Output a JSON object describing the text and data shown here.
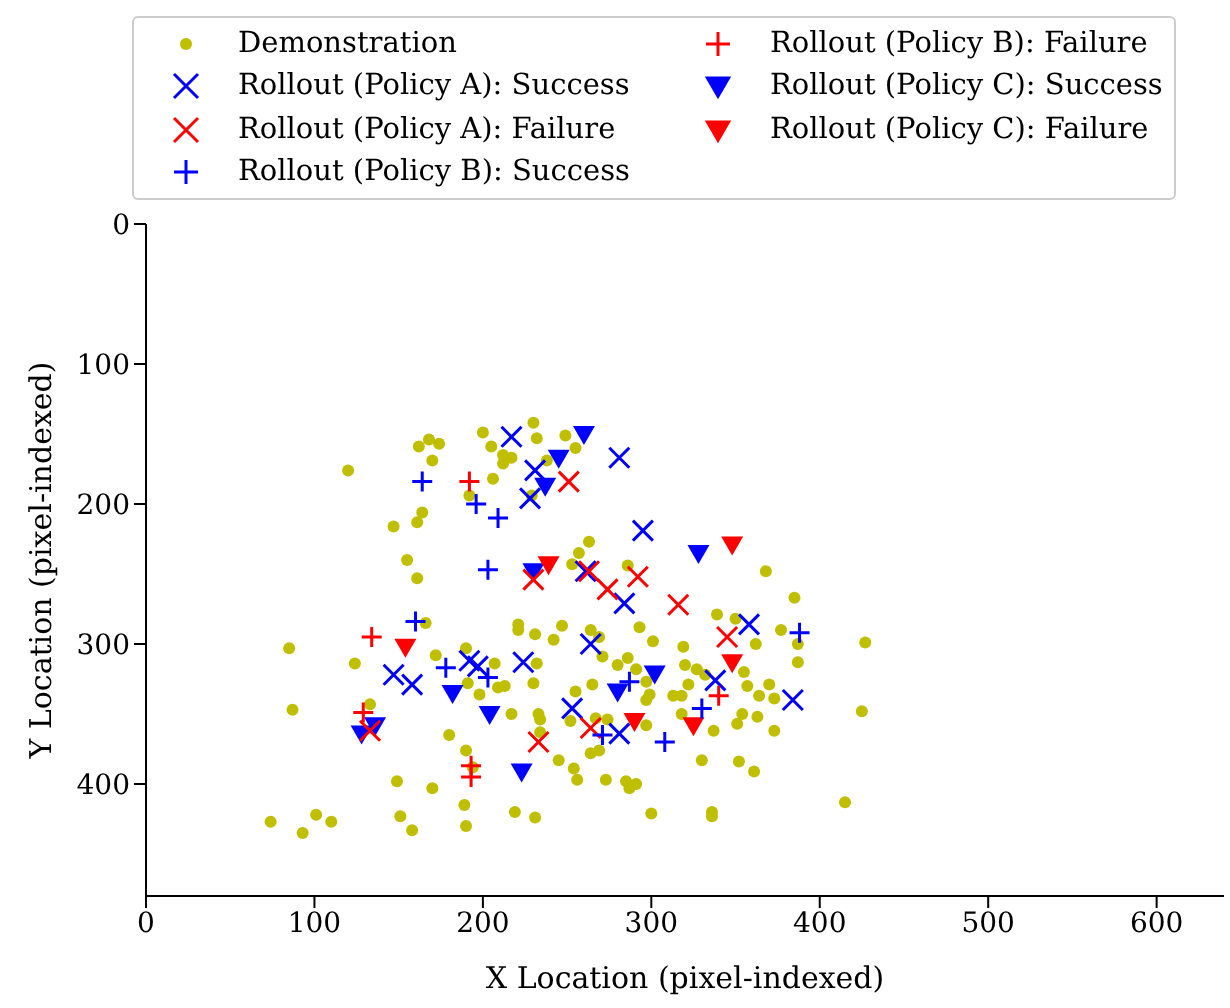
{
  "chart_data": {
    "type": "scatter",
    "xlabel": "X Location (pixel-indexed)",
    "ylabel": "Y Location (pixel-indexed)",
    "xlim": [
      0,
      640
    ],
    "xticks": [
      0,
      100,
      200,
      300,
      400,
      500,
      600
    ],
    "ylim": [
      480,
      0
    ],
    "yticks": [
      0,
      100,
      200,
      300,
      400
    ],
    "grid": false,
    "legend": "top",
    "series": [
      {
        "name": "Demonstration",
        "color": "#bfbf00",
        "marker": "circle",
        "x": [
          120,
          162,
          168,
          174,
          170,
          200,
          205,
          212,
          217,
          212,
          230,
          232,
          206,
          192,
          229,
          164,
          161,
          147,
          155,
          161,
          249,
          255,
          238,
          263,
          257,
          253,
          286,
          368,
          166,
          85,
          124,
          172,
          190,
          191,
          207,
          221,
          221,
          231,
          232,
          230,
          209,
          213,
          198,
          217,
          233,
          234,
          133,
          87,
          180,
          190,
          194,
          149,
          170,
          189,
          190,
          151,
          158,
          219,
          231,
          74,
          93,
          101,
          110,
          385,
          427,
          387,
          387,
          377,
          362,
          339,
          350,
          247,
          242,
          264,
          269,
          293,
          301,
          319,
          271,
          286,
          280,
          291,
          320,
          327,
          265,
          255,
          297,
          299,
          297,
          313,
          318,
          322,
          332,
          355,
          357,
          370,
          364,
          373,
          354,
          363,
          351,
          373,
          425,
          234,
          252,
          267,
          274,
          297,
          318,
          337,
          245,
          264,
          269,
          254,
          256,
          273,
          285,
          291,
          287,
          330,
          352,
          361,
          300,
          336,
          336,
          415
        ],
        "values": [
          176,
          159,
          154,
          157,
          169,
          149,
          159,
          165,
          167,
          171,
          142,
          153,
          182,
          194,
          194,
          206,
          213,
          216,
          240,
          253,
          151,
          160,
          169,
          227,
          235,
          243,
          244,
          248,
          285,
          303,
          314,
          308,
          303,
          328,
          314,
          286,
          290,
          293,
          314,
          328,
          331,
          330,
          336,
          350,
          350,
          354,
          343,
          347,
          365,
          376,
          388,
          398,
          403,
          415,
          430,
          423,
          433,
          420,
          424,
          427,
          435,
          422,
          427,
          267,
          299,
          300,
          313,
          290,
          300,
          279,
          282,
          287,
          297,
          290,
          295,
          288,
          298,
          302,
          309,
          310,
          315,
          318,
          315,
          318,
          329,
          334,
          327,
          336,
          340,
          337,
          337,
          329,
          322,
          320,
          330,
          329,
          337,
          339,
          350,
          352,
          357,
          362,
          348,
          363,
          355,
          353,
          354,
          358,
          350,
          362,
          383,
          378,
          376,
          389,
          397,
          397,
          398,
          400,
          403,
          383,
          384,
          391,
          421,
          420,
          423,
          413
        ]
      },
      {
        "name": "Rollout (Policy A): Success",
        "color": "#0000ff",
        "marker": "cross",
        "x": [
          217,
          231,
          228,
          281,
          295,
          284,
          264,
          358,
          338,
          384,
          253,
          281,
          261,
          147,
          158,
          192,
          197,
          224
        ],
        "values": [
          152,
          176,
          196,
          167,
          219,
          271,
          300,
          286,
          326,
          340,
          346,
          364,
          248,
          322,
          329,
          312,
          316,
          313
        ]
      },
      {
        "name": "Rollout (Policy A): Failure",
        "color": "#ff0000",
        "marker": "cross",
        "x": [
          251,
          263,
          292,
          230,
          274,
          316,
          345,
          264,
          233,
          133
        ],
        "values": [
          184,
          248,
          252,
          254,
          261,
          272,
          295,
          360,
          370,
          362
        ]
      },
      {
        "name": "Rollout (Policy B): Success",
        "color": "#0000ff",
        "marker": "plus",
        "x": [
          164,
          196,
          209,
          203,
          160,
          178,
          203,
          388,
          287,
          330,
          271,
          308
        ],
        "values": [
          184,
          200,
          210,
          247,
          284,
          317,
          324,
          292,
          327,
          346,
          365,
          370
        ]
      },
      {
        "name": "Rollout (Policy B): Failure",
        "color": "#ff0000",
        "marker": "plus",
        "x": [
          192,
          134,
          129,
          193,
          193,
          340
        ],
        "values": [
          184,
          295,
          349,
          387,
          395,
          337
        ]
      },
      {
        "name": "Rollout (Policy C): Success",
        "color": "#0000ff",
        "marker": "triangle_down",
        "x": [
          260,
          245,
          237,
          230,
          328,
          182,
          204,
          136,
          128,
          223,
          302,
          280
        ],
        "values": [
          150,
          167,
          187,
          248,
          235,
          335,
          350,
          358,
          364,
          391,
          321,
          334
        ]
      },
      {
        "name": "Rollout (Policy C): Failure",
        "color": "#ff0000",
        "marker": "triangle_down",
        "x": [
          239,
          348,
          154,
          348,
          290,
          325
        ],
        "values": [
          243,
          229,
          302,
          313,
          355,
          358
        ]
      }
    ]
  }
}
